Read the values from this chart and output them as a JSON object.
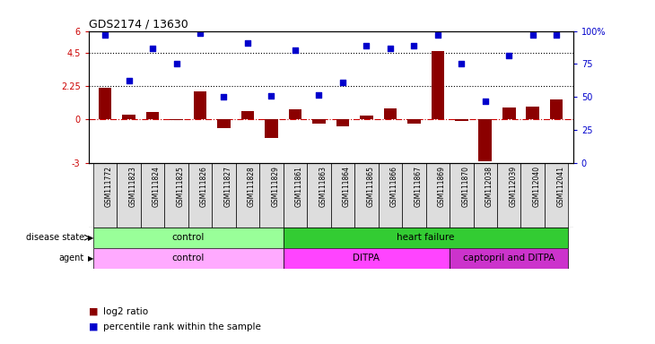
{
  "title": "GDS2174 / 13630",
  "samples": [
    "GSM111772",
    "GSM111823",
    "GSM111824",
    "GSM111825",
    "GSM111826",
    "GSM111827",
    "GSM111828",
    "GSM111829",
    "GSM111861",
    "GSM111863",
    "GSM111864",
    "GSM111865",
    "GSM111866",
    "GSM111867",
    "GSM111869",
    "GSM111870",
    "GSM112038",
    "GSM112039",
    "GSM112040",
    "GSM112041"
  ],
  "log2_ratio": [
    2.1,
    0.3,
    0.5,
    -0.1,
    1.85,
    -0.6,
    0.55,
    -1.3,
    0.65,
    -0.35,
    -0.5,
    0.2,
    0.7,
    -0.3,
    4.6,
    -0.15,
    -2.9,
    0.75,
    0.85,
    1.3
  ],
  "percentile": [
    5.7,
    2.6,
    4.8,
    3.8,
    5.85,
    1.5,
    5.2,
    1.6,
    4.7,
    1.65,
    2.5,
    5.0,
    4.8,
    5.0,
    5.7,
    3.8,
    1.2,
    4.3,
    5.7,
    5.75
  ],
  "ylim_left": [
    -3,
    6
  ],
  "ylim_right": [
    0,
    100
  ],
  "bar_color": "#8B0000",
  "dot_color": "#0000CC",
  "zero_line_color": "#CC0000",
  "disease_state_groups": [
    {
      "label": "control",
      "start": 0,
      "end": 7,
      "color": "#99FF99"
    },
    {
      "label": "heart failure",
      "start": 8,
      "end": 19,
      "color": "#33CC33"
    }
  ],
  "agent_groups": [
    {
      "label": "control",
      "start": 0,
      "end": 7,
      "color": "#FFAAFF"
    },
    {
      "label": "DITPA",
      "start": 8,
      "end": 14,
      "color": "#FF44FF"
    },
    {
      "label": "captopril and DITPA",
      "start": 15,
      "end": 19,
      "color": "#CC33CC"
    }
  ],
  "background_color": "#ffffff",
  "tick_color_left": "#CC0000",
  "tick_color_right": "#0000CC",
  "label_row1": "disease state",
  "label_row2": "agent",
  "legend_log2": "log2 ratio",
  "legend_pct": "percentile rank within the sample",
  "xtick_bg": "#DDDDDD"
}
